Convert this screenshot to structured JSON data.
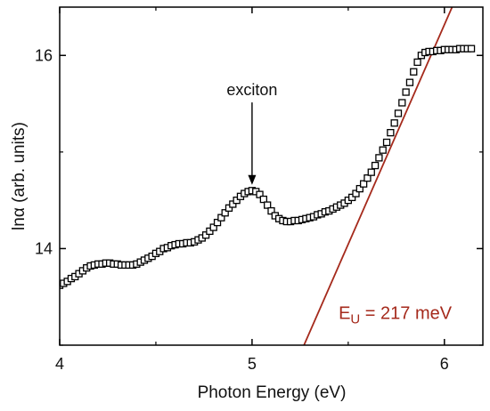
{
  "chart_data": {
    "type": "scatter",
    "title": "",
    "xlabel": "Photon Energy (eV)",
    "ylabel_prefix": "ln",
    "ylabel_symbol": "α",
    "ylabel_suffix": " (arb. units)",
    "xlim": [
      4.0,
      6.2
    ],
    "ylim": [
      13.0,
      16.5
    ],
    "xticks": [
      {
        "value": 4,
        "label": "4"
      },
      {
        "value": 5,
        "label": "5"
      },
      {
        "value": 6,
        "label": "6"
      }
    ],
    "yticks": [
      {
        "value": 14,
        "label": "14"
      },
      {
        "value": 16,
        "label": "16"
      }
    ],
    "grid": false,
    "marker_color": "#000000",
    "fit_color": "#a52a1c",
    "series": [
      {
        "marker": "open-square",
        "points": [
          [
            4.0,
            13.62
          ],
          [
            4.02,
            13.64
          ],
          [
            4.04,
            13.66
          ],
          [
            4.06,
            13.69
          ],
          [
            4.08,
            13.71
          ],
          [
            4.1,
            13.74
          ],
          [
            4.12,
            13.77
          ],
          [
            4.14,
            13.8
          ],
          [
            4.16,
            13.82
          ],
          [
            4.18,
            13.83
          ],
          [
            4.2,
            13.84
          ],
          [
            4.22,
            13.84
          ],
          [
            4.24,
            13.85
          ],
          [
            4.26,
            13.85
          ],
          [
            4.28,
            13.84
          ],
          [
            4.3,
            13.84
          ],
          [
            4.32,
            13.83
          ],
          [
            4.34,
            13.83
          ],
          [
            4.36,
            13.83
          ],
          [
            4.38,
            13.83
          ],
          [
            4.4,
            13.84
          ],
          [
            4.42,
            13.86
          ],
          [
            4.44,
            13.88
          ],
          [
            4.46,
            13.9
          ],
          [
            4.48,
            13.92
          ],
          [
            4.5,
            13.95
          ],
          [
            4.52,
            13.97
          ],
          [
            4.54,
            14.0
          ],
          [
            4.56,
            14.01
          ],
          [
            4.58,
            14.03
          ],
          [
            4.6,
            14.04
          ],
          [
            4.62,
            14.05
          ],
          [
            4.64,
            14.05
          ],
          [
            4.66,
            14.06
          ],
          [
            4.68,
            14.06
          ],
          [
            4.7,
            14.07
          ],
          [
            4.72,
            14.09
          ],
          [
            4.74,
            14.11
          ],
          [
            4.76,
            14.14
          ],
          [
            4.78,
            14.18
          ],
          [
            4.8,
            14.22
          ],
          [
            4.82,
            14.27
          ],
          [
            4.84,
            14.32
          ],
          [
            4.86,
            14.37
          ],
          [
            4.88,
            14.42
          ],
          [
            4.9,
            14.46
          ],
          [
            4.92,
            14.5
          ],
          [
            4.94,
            14.54
          ],
          [
            4.96,
            14.57
          ],
          [
            4.98,
            14.59
          ],
          [
            5.0,
            14.6
          ],
          [
            5.02,
            14.59
          ],
          [
            5.04,
            14.56
          ],
          [
            5.06,
            14.51
          ],
          [
            5.08,
            14.45
          ],
          [
            5.1,
            14.39
          ],
          [
            5.12,
            14.34
          ],
          [
            5.14,
            14.31
          ],
          [
            5.16,
            14.29
          ],
          [
            5.18,
            14.28
          ],
          [
            5.2,
            14.28
          ],
          [
            5.22,
            14.29
          ],
          [
            5.24,
            14.29
          ],
          [
            5.26,
            14.3
          ],
          [
            5.28,
            14.31
          ],
          [
            5.3,
            14.32
          ],
          [
            5.32,
            14.33
          ],
          [
            5.34,
            14.35
          ],
          [
            5.36,
            14.36
          ],
          [
            5.38,
            14.38
          ],
          [
            5.4,
            14.39
          ],
          [
            5.42,
            14.41
          ],
          [
            5.44,
            14.43
          ],
          [
            5.46,
            14.45
          ],
          [
            5.48,
            14.47
          ],
          [
            5.5,
            14.5
          ],
          [
            5.52,
            14.53
          ],
          [
            5.54,
            14.57
          ],
          [
            5.56,
            14.62
          ],
          [
            5.58,
            14.67
          ],
          [
            5.6,
            14.73
          ],
          [
            5.62,
            14.79
          ],
          [
            5.64,
            14.86
          ],
          [
            5.66,
            14.94
          ],
          [
            5.68,
            15.02
          ],
          [
            5.7,
            15.1
          ],
          [
            5.72,
            15.2
          ],
          [
            5.74,
            15.3
          ],
          [
            5.76,
            15.4
          ],
          [
            5.78,
            15.51
          ],
          [
            5.8,
            15.62
          ],
          [
            5.82,
            15.72
          ],
          [
            5.84,
            15.83
          ],
          [
            5.86,
            15.93
          ],
          [
            5.88,
            16.0
          ],
          [
            5.9,
            16.03
          ],
          [
            5.92,
            16.04
          ],
          [
            5.94,
            16.04
          ],
          [
            5.96,
            16.05
          ],
          [
            5.98,
            16.05
          ],
          [
            6.0,
            16.06
          ],
          [
            6.02,
            16.06
          ],
          [
            6.04,
            16.06
          ],
          [
            6.06,
            16.06
          ],
          [
            6.08,
            16.07
          ],
          [
            6.1,
            16.07
          ],
          [
            6.12,
            16.07
          ],
          [
            6.14,
            16.07
          ]
        ]
      }
    ],
    "fit_line": {
      "x": [
        5.27,
        6.04
      ],
      "y": [
        13.0,
        16.5
      ]
    },
    "annotations": [
      {
        "text": "exciton",
        "arrow_tip": [
          5.0,
          14.66
        ],
        "text_at": [
          5.0,
          15.55
        ]
      }
    ],
    "fit_label_prefix": "E",
    "fit_label_subscript": "U",
    "fit_label_suffix": " = 217 meV",
    "fit_label_at": [
      5.45,
      13.27
    ]
  }
}
